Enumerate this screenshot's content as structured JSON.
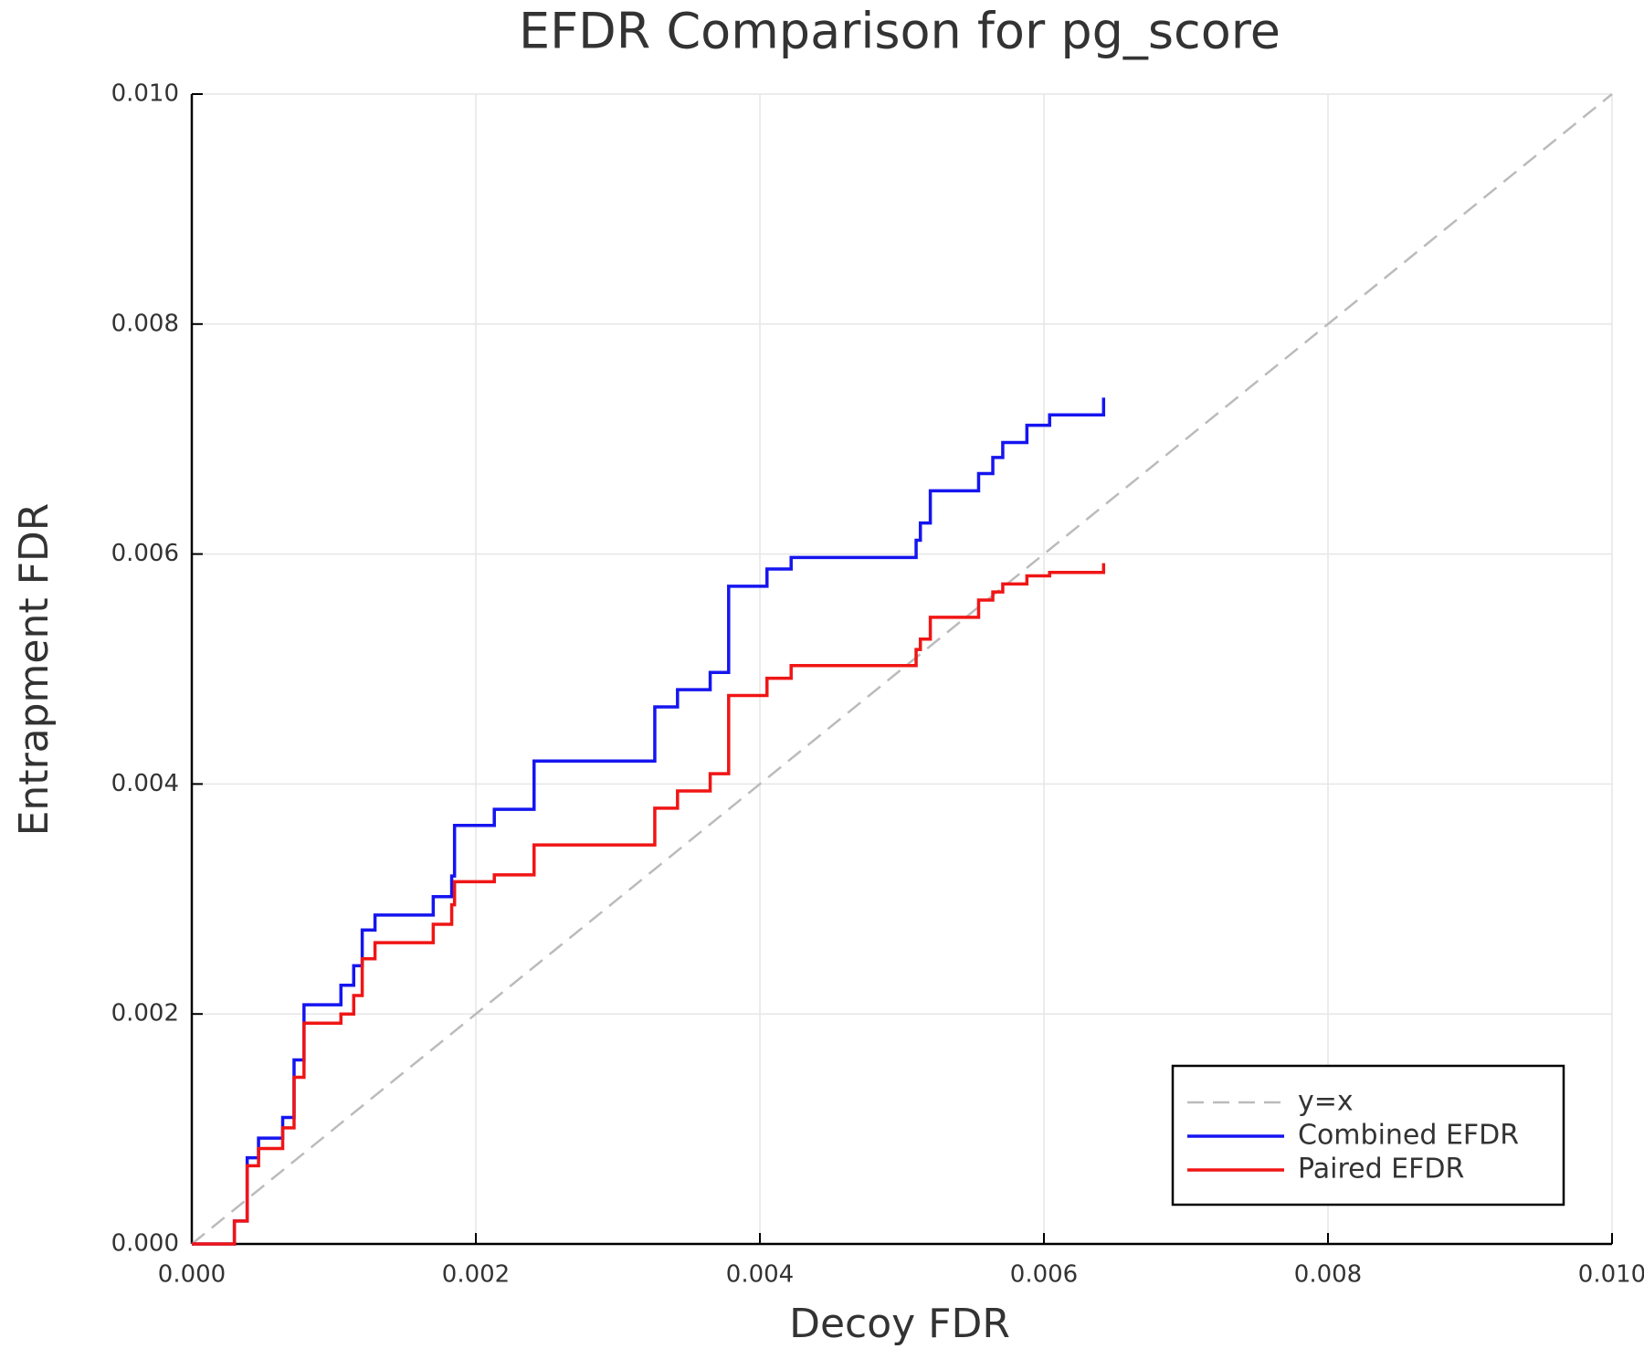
{
  "chart_data": {
    "type": "line",
    "title": "EFDR Comparison for pg_score",
    "x_label": "Decoy FDR",
    "y_label": "Entrapment FDR",
    "xlim": [
      0,
      0.01
    ],
    "ylim": [
      0,
      0.01
    ],
    "xticks": [
      {
        "value": 0,
        "label": "0.000"
      },
      {
        "value": 0.002,
        "label": "0.002"
      },
      {
        "value": 0.004,
        "label": "0.004"
      },
      {
        "value": 0.006,
        "label": "0.006"
      },
      {
        "value": 0.008,
        "label": "0.008"
      },
      {
        "value": 0.01,
        "label": "0.010"
      }
    ],
    "yticks": [
      {
        "value": 0,
        "label": "0.000"
      },
      {
        "value": 0.002,
        "label": "0.002"
      },
      {
        "value": 0.004,
        "label": "0.004"
      },
      {
        "value": 0.006,
        "label": "0.006"
      },
      {
        "value": 0.008,
        "label": "0.008"
      },
      {
        "value": 0.01,
        "label": "0.010"
      }
    ],
    "grid": true,
    "legend": "lower right",
    "series": [
      {
        "name": "y=x",
        "color": "#bbbbbb",
        "dashed": true,
        "step": false,
        "x": [
          0,
          0.01
        ],
        "values": [
          0,
          0.01
        ]
      },
      {
        "name": "Combined EFDR",
        "color": "#1515f0",
        "dashed": false,
        "step": true,
        "x": [
          0,
          0.0003,
          0.00039,
          0.00047,
          0.00064,
          0.00072,
          0.00079,
          0.00105,
          0.00114,
          0.0012,
          0.00129,
          0.0017,
          0.00183,
          0.00185,
          0.00213,
          0.00241,
          0.00326,
          0.00342,
          0.00365,
          0.00378,
          0.00405,
          0.00422,
          0.0051,
          0.00513,
          0.0052,
          0.00554,
          0.00564,
          0.00571,
          0.00588,
          0.00604,
          0.00642
        ],
        "values": [
          0,
          0.0002,
          0.00075,
          0.00092,
          0.0011,
          0.0016,
          0.00208,
          0.00225,
          0.00242,
          0.00273,
          0.00286,
          0.00302,
          0.0032,
          0.00364,
          0.00378,
          0.0042,
          0.00467,
          0.00482,
          0.00497,
          0.00572,
          0.00587,
          0.00597,
          0.00612,
          0.00627,
          0.00655,
          0.0067,
          0.00684,
          0.00697,
          0.00712,
          0.00721,
          0.00736
        ]
      },
      {
        "name": "Paired EFDR",
        "color": "#f01515",
        "dashed": false,
        "step": true,
        "x": [
          0,
          0.0003,
          0.00039,
          0.00047,
          0.00064,
          0.00072,
          0.00079,
          0.00105,
          0.00114,
          0.0012,
          0.00129,
          0.0017,
          0.00183,
          0.00185,
          0.00213,
          0.00241,
          0.00326,
          0.00342,
          0.00365,
          0.00378,
          0.00405,
          0.00422,
          0.0051,
          0.00513,
          0.0052,
          0.00554,
          0.00564,
          0.00571,
          0.00588,
          0.00604,
          0.00642
        ],
        "values": [
          0,
          0.0002,
          0.00068,
          0.00083,
          0.00101,
          0.00145,
          0.00192,
          0.002,
          0.00216,
          0.00248,
          0.00262,
          0.00278,
          0.00295,
          0.00315,
          0.00321,
          0.00347,
          0.00379,
          0.00394,
          0.00409,
          0.00477,
          0.00492,
          0.00503,
          0.00517,
          0.00526,
          0.00545,
          0.0056,
          0.00567,
          0.00574,
          0.00581,
          0.00584,
          0.00592
        ]
      }
    ]
  }
}
